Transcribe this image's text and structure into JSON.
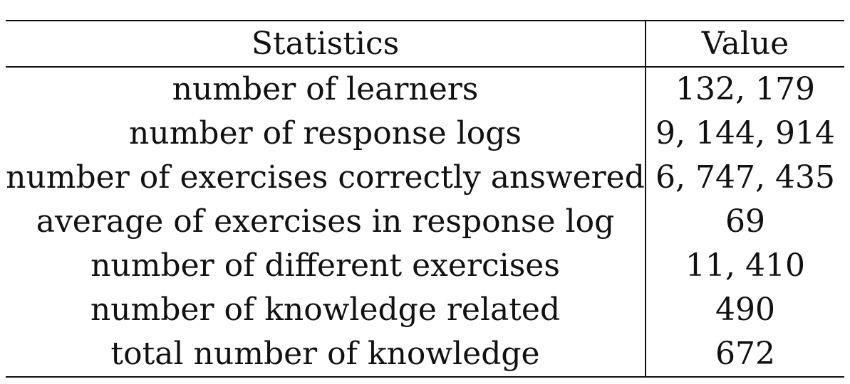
{
  "table": {
    "headers": [
      "Statistics",
      "Value"
    ],
    "rows": [
      {
        "stat": "number of learners",
        "value": "132, 179"
      },
      {
        "stat": "number of response logs",
        "value": "9, 144, 914"
      },
      {
        "stat": "number of exercises correctly answered",
        "value": "6, 747, 435"
      },
      {
        "stat": "average of exercises in response log",
        "value": "69"
      },
      {
        "stat": "number of different exercises",
        "value": "11, 410"
      },
      {
        "stat": "number of knowledge related",
        "value": "490"
      },
      {
        "stat": "total number of knowledge",
        "value": "672"
      }
    ]
  }
}
